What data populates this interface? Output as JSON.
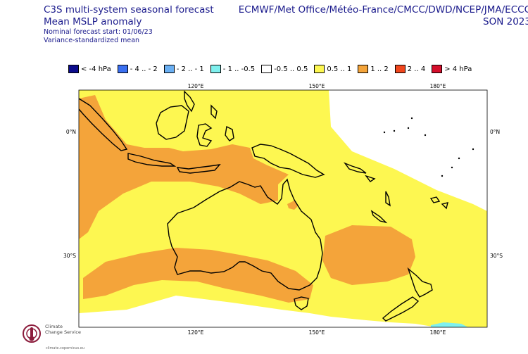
{
  "header": {
    "title_lines": [
      "C3S multi-system seasonal forecast",
      "Mean MSLP anomaly"
    ],
    "subtitle_lines": [
      "Nominal forecast start: 01/06/23",
      "Variance-standardized mean"
    ],
    "centres": "ECMWF/Met Office/Météo-France/CMCC/DWD/NCEP/JMA/ECCC",
    "season": "SON 2023"
  },
  "legend": [
    {
      "label": "< -4 hPa",
      "color": "#0b0b8c"
    },
    {
      "label": "- 4 .. - 2",
      "color": "#3a6ff0"
    },
    {
      "label": "- 2 .. - 1",
      "color": "#6aaff2"
    },
    {
      "label": "- 1 .. -0.5",
      "color": "#7ff0ee"
    },
    {
      "label": "-0.5 .. 0.5",
      "color": "#ffffff"
    },
    {
      "label": "0.5 .. 1",
      "color": "#fdf751"
    },
    {
      "label": "1 .. 2",
      "color": "#f4a43a"
    },
    {
      "label": "2 .. 4",
      "color": "#f0461d"
    },
    {
      "label": "> 4 hPa",
      "color": "#d40e2b"
    }
  ],
  "axes": {
    "lon_labels": [
      "120°E",
      "150°E",
      "180°E"
    ],
    "lat_labels": [
      "0°N",
      "30°S"
    ]
  },
  "map_colors": {
    "yellow": "#fdf751",
    "orange": "#f4a43a",
    "cyan": "#7ff0ee",
    "coast": "#000000"
  },
  "logo": {
    "lines": [
      "Climate",
      "Change Service"
    ],
    "url": "climate.copernicus.eu"
  }
}
